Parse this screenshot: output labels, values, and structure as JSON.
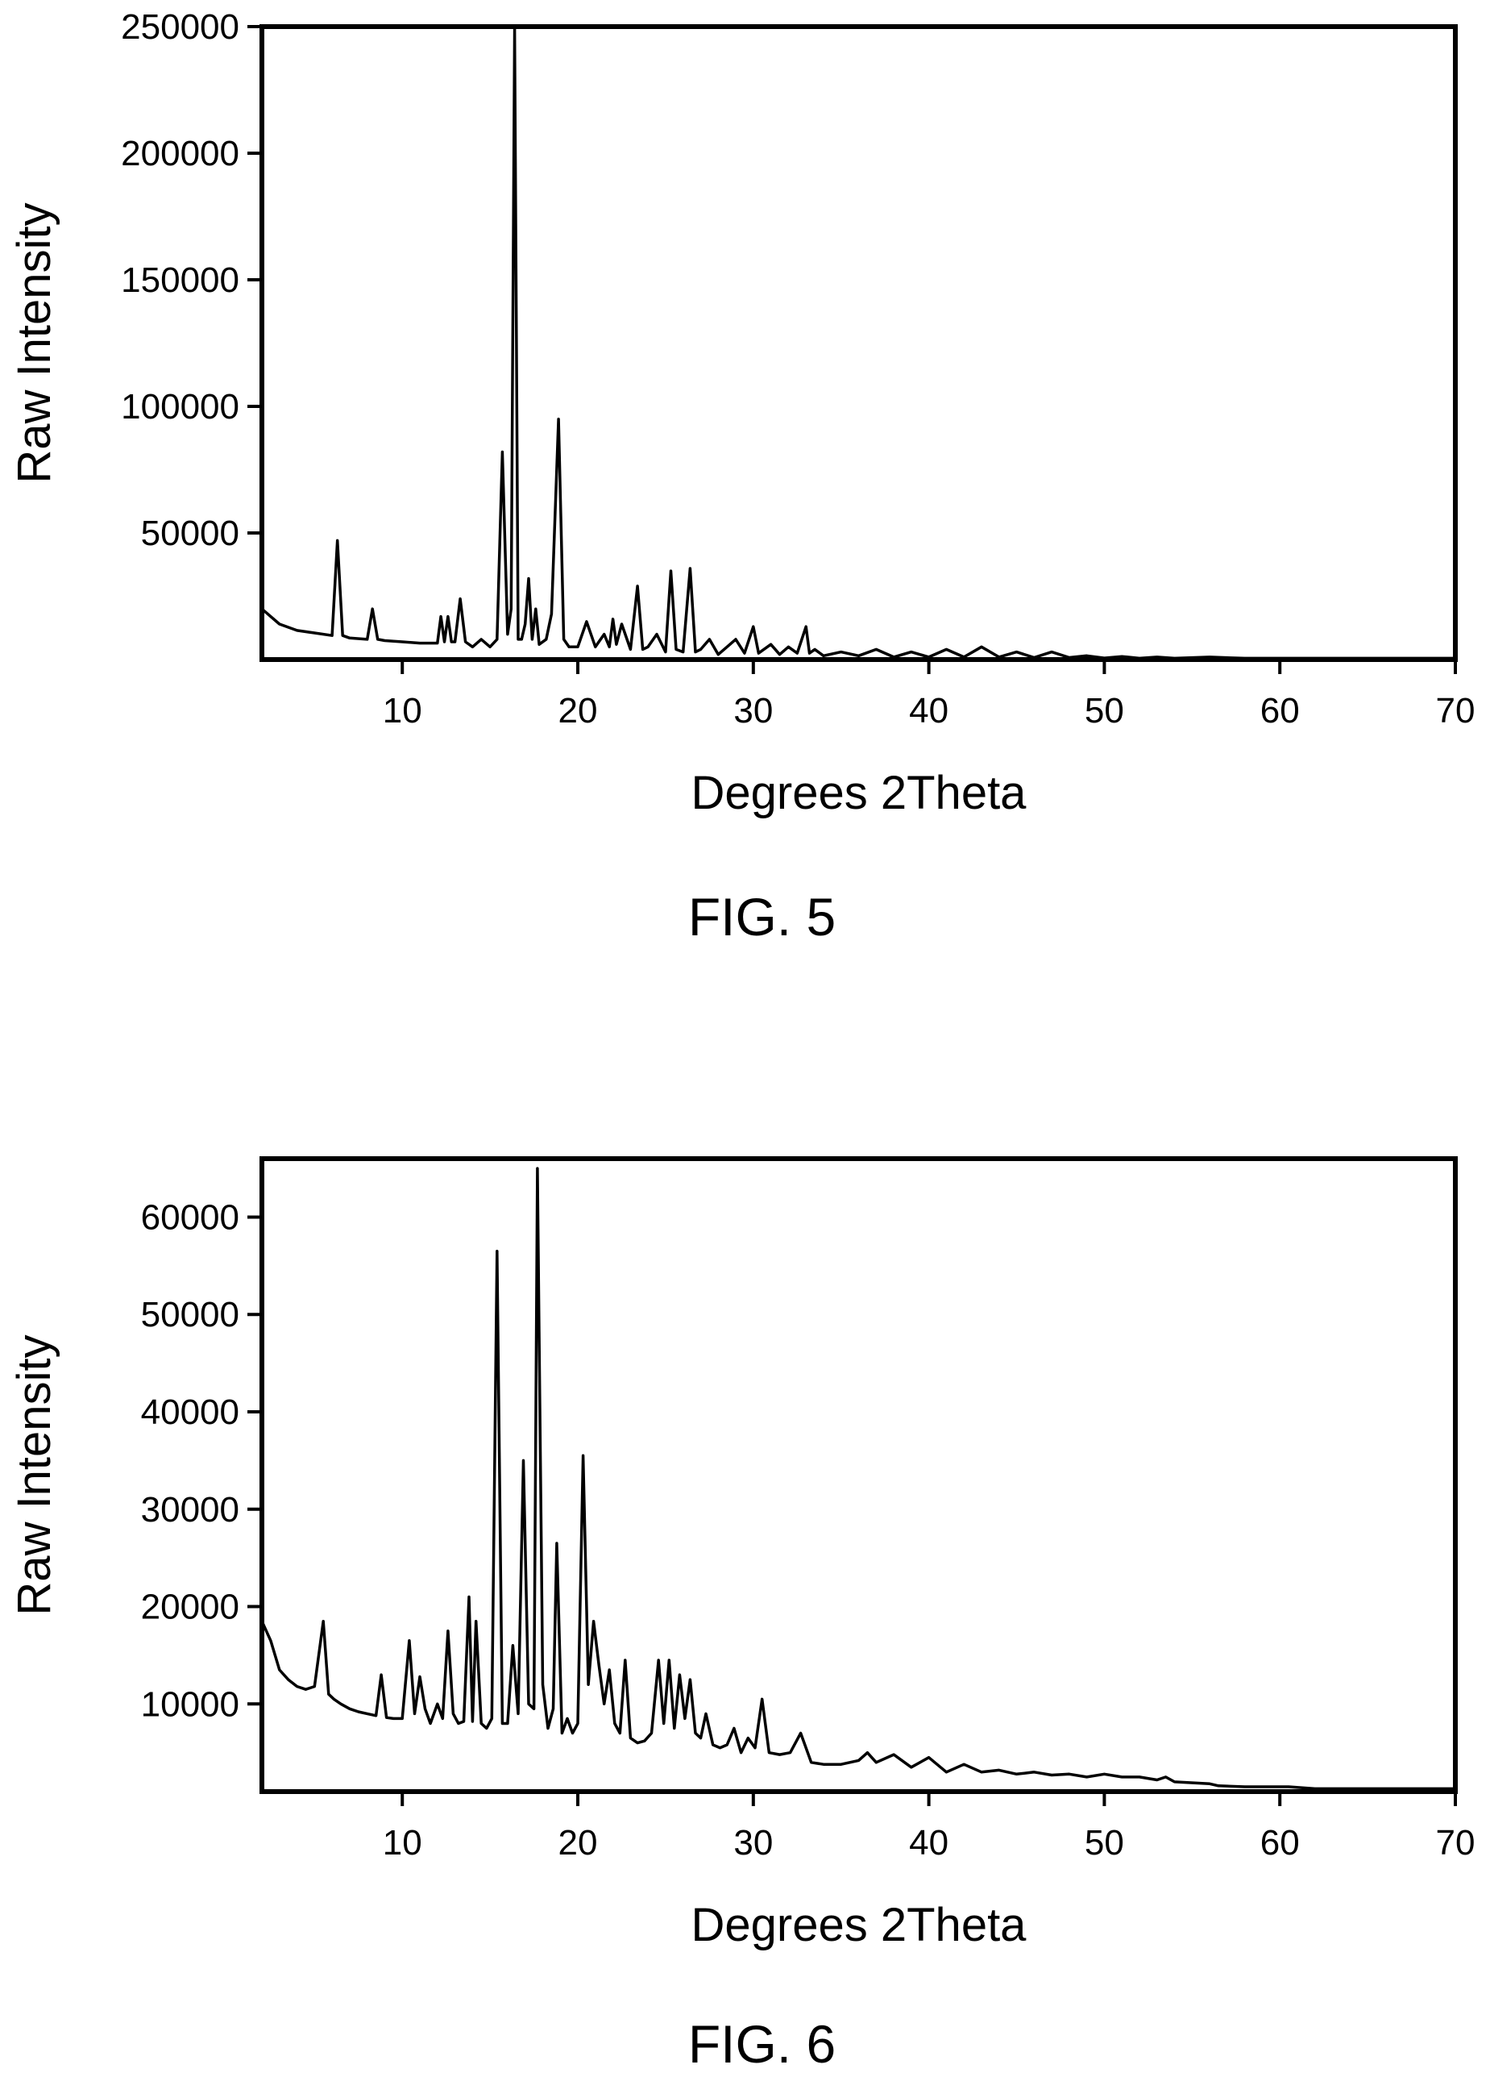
{
  "chart_data": [
    {
      "type": "line",
      "caption": "FIG. 5",
      "xlabel": "Degrees 2Theta",
      "ylabel": "Raw Intensity",
      "xlim": [
        2,
        70
      ],
      "ylim": [
        0,
        250000
      ],
      "x_ticks": [
        10,
        20,
        30,
        40,
        50,
        60,
        70
      ],
      "x_tick_labels": [
        "10",
        "20",
        "30",
        "40",
        "50",
        "60",
        "70"
      ],
      "y_ticks": [
        50000,
        100000,
        150000,
        200000,
        250000
      ],
      "y_tick_labels": [
        "50000",
        "100000",
        "150000",
        "200000",
        "250000"
      ],
      "grid": false,
      "series": [
        {
          "color": "#000000",
          "x": [
            2,
            3,
            4,
            5,
            6,
            6.3,
            6.6,
            7,
            8,
            8.3,
            8.6,
            9,
            10,
            11,
            12,
            12.2,
            12.4,
            12.6,
            12.8,
            13,
            13.3,
            13.6,
            14,
            14.5,
            15,
            15.4,
            15.7,
            16.0,
            16.2,
            16.4,
            16.6,
            16.8,
            17.0,
            17.2,
            17.4,
            17.6,
            17.8,
            18.2,
            18.5,
            18.9,
            19.2,
            19.5,
            20,
            20.5,
            21,
            21.5,
            21.8,
            22,
            22.2,
            22.5,
            23,
            23.4,
            23.7,
            24,
            24.5,
            25,
            25.3,
            25.6,
            26,
            26.4,
            26.7,
            27,
            27.5,
            28,
            28.5,
            29,
            29.5,
            30,
            30.3,
            31,
            31.5,
            32,
            32.5,
            33,
            33.2,
            33.5,
            34,
            35,
            36,
            37,
            38,
            39,
            40,
            41,
            42,
            43,
            44,
            45,
            46,
            47,
            48,
            49,
            50,
            51,
            52,
            53,
            54,
            56,
            58,
            60,
            62,
            64,
            66,
            68,
            70
          ],
          "y": [
            20000,
            14000,
            11500,
            10500,
            9500,
            47000,
            9500,
            8500,
            8000,
            20000,
            8000,
            7500,
            7000,
            6500,
            6500,
            17000,
            7000,
            17000,
            7000,
            7000,
            24000,
            7000,
            5000,
            8000,
            5000,
            8000,
            82000,
            10000,
            20000,
            250000,
            8000,
            8000,
            14000,
            32000,
            8000,
            20000,
            6000,
            8000,
            18000,
            95000,
            8000,
            5000,
            5000,
            15000,
            5000,
            10000,
            5000,
            16000,
            6000,
            14000,
            4000,
            29000,
            4000,
            5000,
            10000,
            3000,
            35000,
            4000,
            3000,
            36000,
            3000,
            4000,
            8000,
            2000,
            5000,
            8000,
            2500,
            13000,
            2500,
            6000,
            2000,
            5000,
            2500,
            13000,
            2500,
            4000,
            1500,
            3000,
            1500,
            4000,
            1000,
            3000,
            1000,
            4000,
            1000,
            5000,
            1000,
            3000,
            800,
            3000,
            800,
            1500,
            600,
            1200,
            500,
            1000,
            500,
            1000,
            500,
            500,
            500,
            500,
            500,
            500,
            500
          ]
        }
      ]
    },
    {
      "type": "line",
      "caption": "FIG. 6",
      "xlabel": "Degrees 2Theta",
      "ylabel": "Raw Intensity",
      "xlim": [
        2,
        70
      ],
      "ylim": [
        1000,
        66000
      ],
      "x_ticks": [
        10,
        20,
        30,
        40,
        50,
        60,
        70
      ],
      "x_tick_labels": [
        "10",
        "20",
        "30",
        "40",
        "50",
        "60",
        "70"
      ],
      "y_ticks": [
        10000,
        20000,
        30000,
        40000,
        50000,
        60000
      ],
      "y_tick_labels": [
        "10000",
        "20000",
        "30000",
        "40000",
        "50000",
        "60000"
      ],
      "grid": false,
      "series": [
        {
          "color": "#000000",
          "x": [
            2,
            2.5,
            3,
            3.5,
            4,
            4.5,
            5,
            5.5,
            5.8,
            6.1,
            6.5,
            7,
            7.5,
            8,
            8.5,
            8.8,
            9.1,
            9.5,
            10,
            10.4,
            10.7,
            11,
            11.3,
            11.6,
            12,
            12.3,
            12.6,
            12.9,
            13.2,
            13.5,
            13.8,
            14.0,
            14.2,
            14.5,
            14.8,
            15.1,
            15.4,
            15.7,
            16.0,
            16.3,
            16.6,
            16.9,
            17.2,
            17.5,
            17.7,
            18.0,
            18.3,
            18.6,
            18.8,
            19.1,
            19.4,
            19.7,
            20.0,
            20.3,
            20.6,
            20.9,
            21.2,
            21.5,
            21.8,
            22.1,
            22.4,
            22.7,
            23.0,
            23.4,
            23.8,
            24.2,
            24.6,
            24.9,
            25.2,
            25.5,
            25.8,
            26.1,
            26.4,
            26.7,
            27.0,
            27.3,
            27.7,
            28.1,
            28.5,
            28.9,
            29.3,
            29.7,
            30.1,
            30.5,
            30.9,
            31.5,
            32.1,
            32.7,
            33.3,
            34,
            35,
            36,
            36.5,
            37,
            38,
            39,
            40,
            41,
            42,
            43,
            44,
            45,
            46,
            47,
            48,
            49,
            50,
            51,
            52,
            53,
            53.5,
            54,
            56,
            56.5,
            58,
            60,
            60.5,
            62,
            64,
            66,
            68,
            70
          ],
          "y": [
            18500,
            16500,
            13500,
            12500,
            11800,
            11500,
            11800,
            18500,
            11000,
            10500,
            10000,
            9500,
            9200,
            9000,
            8800,
            13000,
            8600,
            8500,
            8500,
            16500,
            9000,
            12800,
            9500,
            8000,
            10000,
            8500,
            17500,
            9000,
            8000,
            8200,
            21000,
            8200,
            18500,
            8000,
            7500,
            8500,
            56500,
            8000,
            8000,
            16000,
            9000,
            35000,
            10000,
            9500,
            65000,
            12000,
            7500,
            9500,
            26500,
            7000,
            8500,
            7000,
            8000,
            35500,
            12000,
            18500,
            14000,
            10000,
            13500,
            8000,
            7000,
            14500,
            6500,
            6000,
            6200,
            7000,
            14500,
            8000,
            14500,
            7500,
            13000,
            8500,
            12500,
            7000,
            6500,
            9000,
            5800,
            5500,
            5800,
            7500,
            5000,
            6500,
            5500,
            10500,
            5000,
            4800,
            5000,
            7000,
            4000,
            3800,
            3800,
            4200,
            5000,
            4000,
            4800,
            3500,
            4500,
            3000,
            3800,
            3000,
            3200,
            2800,
            3000,
            2700,
            2800,
            2500,
            2800,
            2500,
            2500,
            2200,
            2500,
            2000,
            1800,
            1600,
            1500,
            1500,
            1500,
            1300,
            1300,
            1300,
            1300,
            1300
          ]
        }
      ]
    }
  ]
}
